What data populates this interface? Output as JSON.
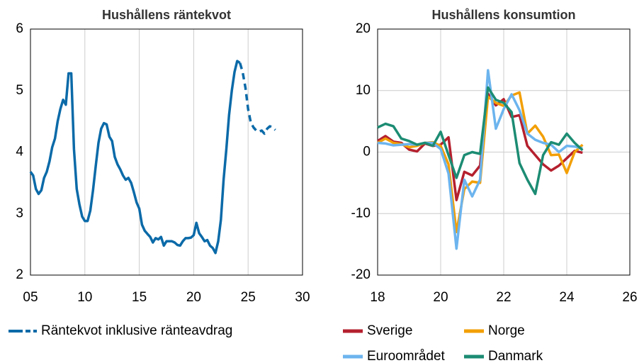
{
  "chart_data": [
    {
      "type": "line",
      "title": "Hushållens räntekvot",
      "x": [
        2005,
        2005.25,
        2005.5,
        2005.75,
        2006,
        2006.25,
        2006.5,
        2006.75,
        2007,
        2007.25,
        2007.5,
        2007.75,
        2008,
        2008.25,
        2008.5,
        2008.75,
        2009,
        2009.25,
        2009.5,
        2009.75,
        2010,
        2010.25,
        2010.5,
        2010.75,
        2011,
        2011.25,
        2011.5,
        2011.75,
        2012,
        2012.25,
        2012.5,
        2012.75,
        2013,
        2013.25,
        2013.5,
        2013.75,
        2014,
        2014.25,
        2014.5,
        2014.75,
        2015,
        2015.25,
        2015.5,
        2015.75,
        2016,
        2016.25,
        2016.5,
        2016.75,
        2017,
        2017.25,
        2017.5,
        2017.75,
        2018,
        2018.25,
        2018.5,
        2018.75,
        2019,
        2019.25,
        2019.5,
        2019.75,
        2020,
        2020.25,
        2020.5,
        2020.75,
        2021,
        2021.25,
        2021.5,
        2021.75,
        2022,
        2022.25,
        2022.5,
        2022.75,
        2023,
        2023.25,
        2023.5,
        2023.75,
        2024,
        2024.25,
        2024.5,
        2024.75,
        2025,
        2025.25,
        2025.5,
        2025.75,
        2026,
        2026.25,
        2026.5,
        2026.75,
        2027,
        2027.25,
        2027.5
      ],
      "series": [
        {
          "name": "Räntekvot inklusive ränteavdrag",
          "color": "#0b6aa8",
          "dash_from_x": 2024.25,
          "values": [
            3.68,
            3.62,
            3.4,
            3.32,
            3.38,
            3.58,
            3.68,
            3.85,
            4.08,
            4.22,
            4.5,
            4.7,
            4.85,
            4.77,
            5.28,
            5.28,
            4.05,
            3.4,
            3.15,
            2.95,
            2.88,
            2.88,
            3.05,
            3.38,
            3.78,
            4.15,
            4.38,
            4.47,
            4.45,
            4.25,
            4.18,
            3.92,
            3.8,
            3.72,
            3.62,
            3.55,
            3.58,
            3.5,
            3.35,
            3.18,
            3.08,
            2.82,
            2.72,
            2.67,
            2.62,
            2.53,
            2.6,
            2.58,
            2.62,
            2.48,
            2.55,
            2.55,
            2.55,
            2.53,
            2.49,
            2.48,
            2.55,
            2.6,
            2.6,
            2.61,
            2.65,
            2.85,
            2.68,
            2.62,
            2.55,
            2.57,
            2.48,
            2.44,
            2.36,
            2.55,
            2.9,
            3.55,
            4.05,
            4.6,
            5.0,
            5.3,
            5.48,
            5.45,
            5.3,
            5.05,
            4.7,
            4.48,
            4.4,
            4.35,
            4.33,
            4.35,
            4.3,
            4.38,
            4.42,
            4.4,
            4.36
          ]
        }
      ],
      "xlim": [
        2005,
        2030
      ],
      "xticks": [
        {
          "value": 2005,
          "label": "05"
        },
        {
          "value": 2010,
          "label": "10"
        },
        {
          "value": 2015,
          "label": "15"
        },
        {
          "value": 2020,
          "label": "20"
        },
        {
          "value": 2025,
          "label": "25"
        },
        {
          "value": 2030,
          "label": "30"
        }
      ],
      "ylim": [
        2,
        6
      ],
      "yticks": [
        2,
        3,
        4,
        5,
        6
      ],
      "grid": "x"
    },
    {
      "type": "line",
      "title": "Hushållens konsumtion",
      "x": [
        2018,
        2018.25,
        2018.5,
        2018.75,
        2019,
        2019.25,
        2019.5,
        2019.75,
        2020,
        2020.25,
        2020.5,
        2020.75,
        2021,
        2021.25,
        2021.5,
        2021.75,
        2022,
        2022.25,
        2022.5,
        2022.75,
        2023,
        2023.25,
        2023.5,
        2023.75,
        2024,
        2024.25,
        2024.5
      ],
      "series": [
        {
          "name": "Sverige",
          "color": "#b5202e",
          "values": [
            1.8,
            2.6,
            1.7,
            1.5,
            0.4,
            0.1,
            1.4,
            1.0,
            1.2,
            2.4,
            -7.8,
            -3.2,
            -3.8,
            -2.2,
            9.5,
            7.6,
            8.6,
            5.7,
            6.0,
            1.0,
            -0.5,
            -2.0,
            -3.0,
            -2.2,
            -1.0,
            0.2,
            -0.1
          ]
        },
        {
          "name": "Norge",
          "color": "#f29f05",
          "values": [
            1.5,
            2.2,
            1.5,
            1.3,
            0.8,
            1.0,
            1.5,
            1.6,
            1.0,
            -2.0,
            -13.0,
            -6.0,
            -4.8,
            -5.0,
            9.0,
            8.0,
            7.5,
            9.2,
            9.7,
            3.0,
            4.3,
            2.5,
            -0.5,
            -0.4,
            -3.4,
            0.0,
            1.2
          ]
        },
        {
          "name": "Euroområdet",
          "color": "#6cb4ee",
          "values": [
            1.5,
            1.4,
            1.1,
            1.2,
            1.3,
            1.2,
            1.5,
            1.5,
            0.5,
            -3.5,
            -15.7,
            -4.5,
            -7.2,
            -4.5,
            13.3,
            3.8,
            7.0,
            9.4,
            6.8,
            3.0,
            2.0,
            1.5,
            1.2,
            0.0,
            1.0,
            0.9,
            0.6
          ]
        },
        {
          "name": "Danmark",
          "color": "#1c8c73",
          "values": [
            4.0,
            4.6,
            4.2,
            2.2,
            1.8,
            1.2,
            1.5,
            1.0,
            3.3,
            -0.5,
            -4.2,
            -0.5,
            0.0,
            -0.3,
            10.5,
            8.5,
            8.0,
            6.5,
            -1.8,
            -4.5,
            -6.8,
            -0.5,
            1.6,
            1.2,
            3.0,
            1.5,
            0.3
          ]
        }
      ],
      "xlim": [
        2018,
        2026
      ],
      "xticks": [
        {
          "value": 2018,
          "label": "18"
        },
        {
          "value": 2020,
          "label": "20"
        },
        {
          "value": 2022,
          "label": "22"
        },
        {
          "value": 2024,
          "label": "24"
        },
        {
          "value": 2026,
          "label": "26"
        }
      ],
      "ylim": [
        -20,
        20
      ],
      "yticks": [
        -20,
        -10,
        0,
        10,
        20
      ],
      "grid": "both"
    }
  ]
}
